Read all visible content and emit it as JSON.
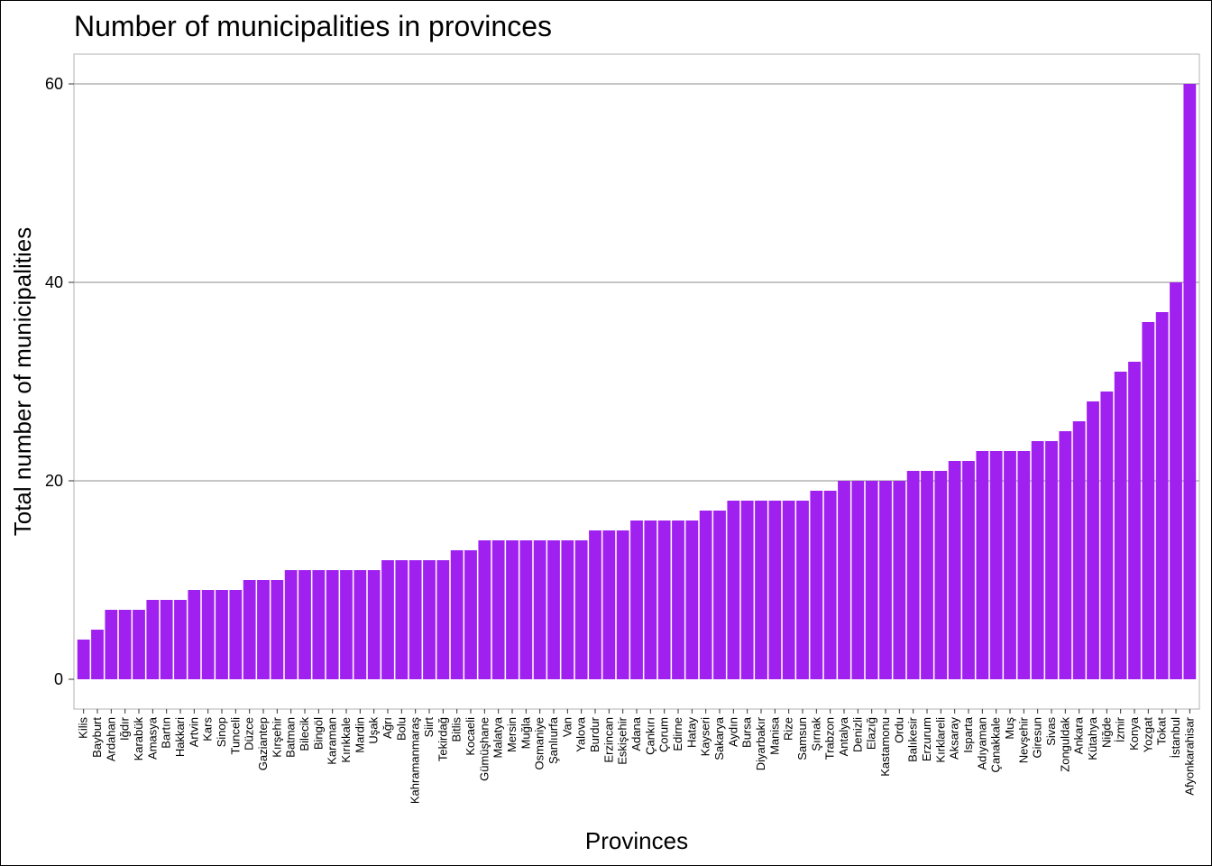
{
  "chart_data": {
    "type": "bar",
    "title": "Number of municipalities in provinces",
    "xlabel": "Provinces",
    "ylabel": "Total number of municipalities",
    "ylim": [
      -3,
      63
    ],
    "yticks": [
      0,
      20,
      40,
      60
    ],
    "grid": "horizontal-major",
    "bar_color": "#a020f0",
    "categories": [
      "Kilis",
      "Bayburt",
      "Ardahan",
      "Iğdır",
      "Karabük",
      "Amasya",
      "Bartın",
      "Hakkari",
      "Artvin",
      "Kars",
      "Sinop",
      "Tunceli",
      "Düzce",
      "Gaziantep",
      "Kırşehir",
      "Batman",
      "Bilecik",
      "Bingöl",
      "Karaman",
      "Kırıkkale",
      "Mardin",
      "Uşak",
      "Ağrı",
      "Bolu",
      "Kahramanmaraş",
      "Siirt",
      "Tekirdağ",
      "Bitlis",
      "Kocaeli",
      "Gümüşhane",
      "Malatya",
      "Mersin",
      "Muğla",
      "Osmaniye",
      "Şanlıurfa",
      "Van",
      "Yalova",
      "Burdur",
      "Erzincan",
      "Eskişehir",
      "Adana",
      "Çankırı",
      "Çorum",
      "Edirne",
      "Hatay",
      "Kayseri",
      "Sakarya",
      "Aydın",
      "Bursa",
      "Diyarbakır",
      "Manisa",
      "Rize",
      "Samsun",
      "Şırnak",
      "Trabzon",
      "Antalya",
      "Denizli",
      "Elazığ",
      "Kastamonu",
      "Ordu",
      "Balıkesir",
      "Erzurum",
      "Kırklareli",
      "Aksaray",
      "Isparta",
      "Adıyaman",
      "Çanakkale",
      "Muş",
      "Nevşehir",
      "Giresun",
      "Sivas",
      "Zonguldak",
      "Ankara",
      "Kütahya",
      "Niğde",
      "İzmir",
      "Konya",
      "Yozgat",
      "Tokat",
      "İstanbul",
      "Afyonkarahisar"
    ],
    "values": [
      4,
      5,
      7,
      7,
      7,
      8,
      8,
      8,
      9,
      9,
      9,
      9,
      10,
      10,
      10,
      11,
      11,
      11,
      11,
      11,
      11,
      11,
      12,
      12,
      12,
      12,
      12,
      13,
      13,
      14,
      14,
      14,
      14,
      14,
      14,
      14,
      14,
      15,
      15,
      15,
      16,
      16,
      16,
      16,
      16,
      17,
      17,
      18,
      18,
      18,
      18,
      18,
      18,
      19,
      19,
      20,
      20,
      20,
      20,
      20,
      21,
      21,
      21,
      22,
      22,
      23,
      23,
      23,
      23,
      24,
      24,
      25,
      26,
      28,
      29,
      31,
      32,
      36,
      37,
      40,
      60
    ]
  }
}
